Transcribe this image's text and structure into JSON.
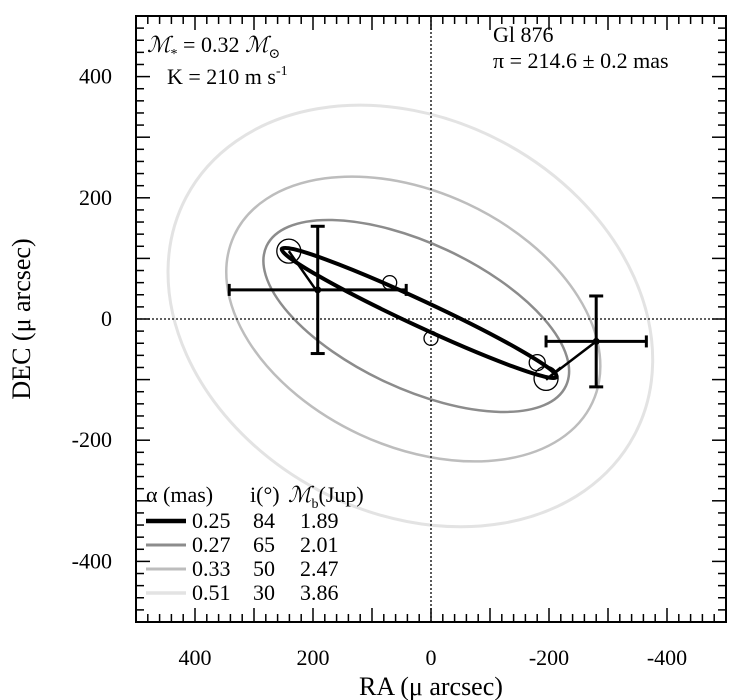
{
  "chart_data": {
    "type": "scatter",
    "xlabel": "RA (μ arcsec)",
    "ylabel": "DEC (μ arcsec)",
    "xlim": [
      500,
      -500
    ],
    "ylim": [
      -500,
      500
    ],
    "x_ticks": [
      400,
      200,
      0,
      -200,
      -400
    ],
    "y_ticks": [
      -400,
      -200,
      0,
      200,
      400
    ],
    "x_tick_labels": [
      "400",
      "200",
      "0",
      "-200",
      "-400"
    ],
    "y_tick_labels": [
      "-400",
      "-200",
      "0",
      "200",
      "400"
    ],
    "annotations": {
      "mass_symbol": "ℳ",
      "mass_sub": "*",
      "mass_eq": " = 0.32 ",
      "sun_symbol": "ℳ",
      "sun_sub": "⊙",
      "k_prefix": "K = 210 m s",
      "k_exp": "-1",
      "star_name": "Gl 876",
      "parallax": "π = 214.6 ± 0.2 mas"
    },
    "legend": {
      "position": "bottom-left",
      "header_alpha": "α (mas)",
      "header_i": "i(°)",
      "header_mb_symbol": "ℳ",
      "header_mb_sub": "b",
      "header_mb_unit": "(Jup)"
    },
    "series": [
      {
        "alpha": "0.25",
        "i": "84",
        "mb": "1.89",
        "color": "#000000",
        "width": 4,
        "cx": 20,
        "cy": 10,
        "a": 257,
        "b": 21,
        "angle": 25
      },
      {
        "alpha": "0.27",
        "i": "65",
        "mb": "2.01",
        "color": "#8c8c8c",
        "width": 2.5,
        "cx": 25,
        "cy": 5,
        "a": 280,
        "b": 120,
        "angle": 25
      },
      {
        "alpha": "0.33",
        "i": "50",
        "mb": "2.47",
        "color": "#bdbdbd",
        "width": 2.5,
        "cx": 30,
        "cy": 0,
        "a": 335,
        "b": 210,
        "angle": 25
      },
      {
        "alpha": "0.51",
        "i": "30",
        "mb": "3.86",
        "color": "#e3e3e3",
        "width": 3,
        "cx": 35,
        "cy": 5,
        "a": 430,
        "b": 325,
        "angle": 28
      }
    ],
    "observations": [
      {
        "x": 192,
        "y": 48,
        "xerr": 150,
        "yerr": 105
      },
      {
        "x": -280,
        "y": -37,
        "xerr": 85,
        "yerr": 75
      }
    ],
    "open_circles": [
      {
        "x": 241,
        "y": 112,
        "r": 12
      },
      {
        "x": 70,
        "y": 60,
        "r": 7
      },
      {
        "x": 0,
        "y": -32,
        "r": 7
      },
      {
        "x": -180,
        "y": -72,
        "r": 8
      },
      {
        "x": -195,
        "y": -98,
        "r": 12
      }
    ],
    "connectors": [
      {
        "x1": -220,
        "y1": -80,
        "x2": -195,
        "y2": -100
      },
      {
        "x1": -195,
        "y1": -100,
        "x2": -280,
        "y2": -37
      },
      {
        "x1": 241,
        "y1": 112,
        "x2": 195,
        "y2": 48
      }
    ],
    "grid": false,
    "zero_lines": true
  }
}
